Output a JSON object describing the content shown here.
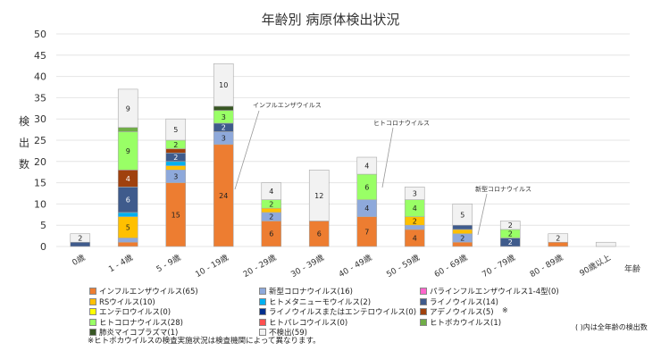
{
  "chart_data": {
    "type": "bar",
    "stacked": true,
    "title": "年齢別 病原体検出状況",
    "ylabel": "検出数",
    "xlabel": "年齢",
    "ylim": [
      0,
      50
    ],
    "yticks": [
      0,
      5,
      10,
      15,
      20,
      25,
      30,
      35,
      40,
      45,
      50
    ],
    "grid": true,
    "categories": [
      "0歳",
      "1 - 4歳",
      "5 - 9歳",
      "10 - 19歳",
      "20 - 29歳",
      "30 - 39歳",
      "40 - 49歳",
      "50 - 59歳",
      "60 - 69歳",
      "70 - 79歳",
      "80 - 89歳",
      "90歳以上"
    ],
    "series": [
      {
        "name": "インフルエンザウイルス(65)",
        "color": "#ED7D31",
        "values": [
          0,
          1,
          15,
          24,
          6,
          6,
          7,
          4,
          1,
          0,
          1,
          0
        ]
      },
      {
        "name": "新型コロナウイルス(16)",
        "color": "#8EA9DB",
        "values": [
          0,
          1,
          3,
          3,
          2,
          0,
          4,
          1,
          2,
          0,
          0,
          0
        ]
      },
      {
        "name": "パラインフルエンザウイルス1-4型(0)",
        "color": "#FF66CC",
        "values": [
          0,
          0,
          0,
          0,
          0,
          0,
          0,
          0,
          0,
          0,
          0,
          0
        ]
      },
      {
        "name": "RSウイルス(10)",
        "color": "#FFC000",
        "values": [
          0,
          5,
          1,
          0,
          1,
          0,
          0,
          2,
          1,
          0,
          0,
          0
        ]
      },
      {
        "name": "ヒトメタニューモウイルス(2)",
        "color": "#00B0F0",
        "values": [
          0,
          1,
          1,
          0,
          0,
          0,
          0,
          0,
          0,
          0,
          0,
          0
        ]
      },
      {
        "name": "ライノウイルス(14)",
        "color": "#3F5B8C",
        "values": [
          1,
          6,
          2,
          2,
          0,
          0,
          0,
          0,
          1,
          2,
          0,
          0
        ]
      },
      {
        "name": "エンテロウイルス(0)",
        "color": "#FFFF00",
        "values": [
          0,
          0,
          0,
          0,
          0,
          0,
          0,
          0,
          0,
          0,
          0,
          0
        ]
      },
      {
        "name": "ライノウイルスまたはエンテロウイルス(0)",
        "color": "#002F8E",
        "values": [
          0,
          0,
          0,
          0,
          0,
          0,
          0,
          0,
          0,
          0,
          0,
          0
        ]
      },
      {
        "name": "アデノウイルス(5)",
        "color": "#A0410D",
        "values": [
          0,
          4,
          1,
          0,
          0,
          0,
          0,
          0,
          0,
          0,
          0,
          0
        ]
      },
      {
        "name": "ヒトコロナウイルス(28)",
        "color": "#99FF66",
        "values": [
          0,
          9,
          2,
          3,
          2,
          0,
          6,
          4,
          0,
          2,
          0,
          0
        ]
      },
      {
        "name": "ヒトパレコウイルス(0)",
        "color": "#FF5050",
        "values": [
          0,
          0,
          0,
          0,
          0,
          0,
          0,
          0,
          0,
          0,
          0,
          0
        ]
      },
      {
        "name": "ヒトボカウイルス(1)",
        "color": "#70AD47",
        "values": [
          0,
          1,
          0,
          0,
          0,
          0,
          0,
          0,
          0,
          0,
          0,
          0
        ]
      },
      {
        "name": "肺炎マイコプラズマ(1)",
        "color": "#375623",
        "values": [
          0,
          0,
          0,
          1,
          0,
          0,
          0,
          0,
          0,
          0,
          0,
          0
        ]
      },
      {
        "name": "不検出(59)",
        "color": "#F2F2F2",
        "values": [
          2,
          9,
          5,
          10,
          4,
          12,
          4,
          3,
          5,
          2,
          2,
          1
        ]
      }
    ],
    "annotations": [
      "インフルエンザウイルス",
      "ヒトコロナウイルス",
      "新型コロナウイルス"
    ],
    "legend_placement": "bottom"
  },
  "notes": {
    "boca_mark": "※",
    "footnote": "※ヒトボカウイルスの検査実施状況は検査機関によって異なります。",
    "count_note": "( )内は全年齢の検出数"
  }
}
